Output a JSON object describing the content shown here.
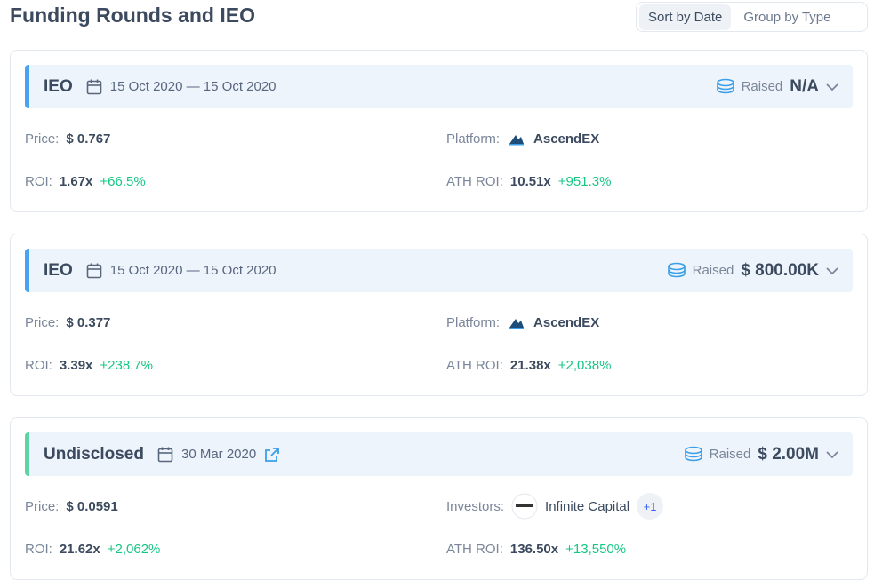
{
  "header": {
    "title": "Funding Rounds and IEO",
    "tabs": [
      "Sort by Date",
      "Group by Type"
    ]
  },
  "rounds": [
    {
      "type": "IEO",
      "date": "15 Oct 2020 — 15 Oct 2020",
      "raised_label": "Raised",
      "raised": "N/A",
      "price_label": "Price:",
      "price": "$ 0.767",
      "platform_label": "Platform:",
      "platform": "AscendEX",
      "roi_label": "ROI:",
      "roi": "1.67x",
      "roi_change": "+66.5%",
      "ath_label": "ATH ROI:",
      "ath": "10.51x",
      "ath_change": "+951.3%"
    },
    {
      "type": "IEO",
      "date": "15 Oct 2020 — 15 Oct 2020",
      "raised_label": "Raised",
      "raised": "$ 800.00K",
      "price_label": "Price:",
      "price": "$ 0.377",
      "platform_label": "Platform:",
      "platform": "AscendEX",
      "roi_label": "ROI:",
      "roi": "3.39x",
      "roi_change": "+238.7%",
      "ath_label": "ATH ROI:",
      "ath": "21.38x",
      "ath_change": "+2,038%"
    },
    {
      "type": "Undisclosed",
      "date": "30 Mar 2020",
      "raised_label": "Raised",
      "raised": "$ 2.00M",
      "price_label": "Price:",
      "price": "$ 0.0591",
      "investors_label": "Investors:",
      "investor": "Infinite Capital",
      "investor_more": "+1",
      "roi_label": "ROI:",
      "roi": "21.62x",
      "roi_change": "+2,062%",
      "ath_label": "ATH ROI:",
      "ath": "136.50x",
      "ath_change": "+13,550%"
    }
  ]
}
